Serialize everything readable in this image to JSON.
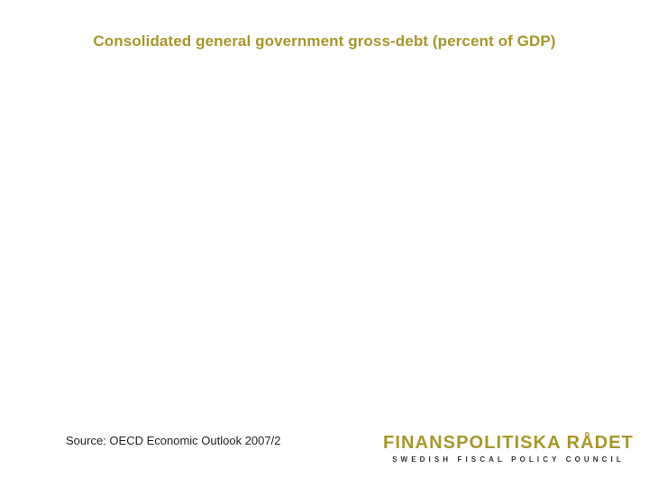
{
  "slide": {
    "title": "Consolidated general government gross-debt (percent of GDP)",
    "source": "Source: OECD Economic Outlook 2007/2"
  },
  "logo": {
    "name": "FINANSPOLITISKA RÅDET",
    "subtitle": "SWEDISH FISCAL POLICY COUNCIL"
  },
  "colors": {
    "accent": "#a8962c",
    "text": "#222222"
  }
}
